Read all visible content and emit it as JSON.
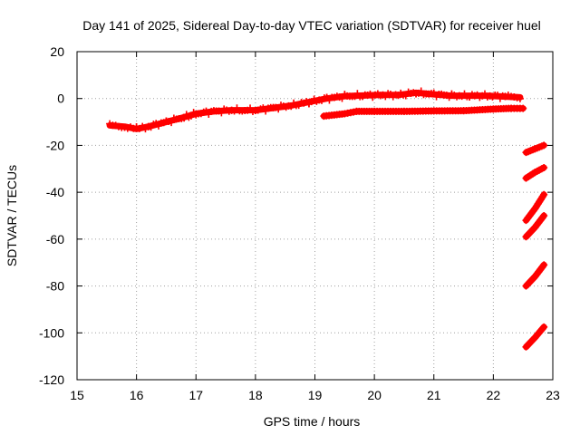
{
  "chart_data": {
    "type": "scatter",
    "title": "Day 141 of 2025, Sidereal Day-to-day VTEC variation (SDTVAR) for receiver huel",
    "xlabel": "GPS time / hours",
    "ylabel": "SDTVAR / TECUs",
    "xlim": [
      15,
      23
    ],
    "ylim": [
      -120,
      20
    ],
    "xticks": [
      "15",
      "16",
      "17",
      "18",
      "19",
      "20",
      "21",
      "22",
      "23"
    ],
    "yticks": [
      "20",
      "0",
      "-20",
      "-40",
      "-60",
      "-80",
      "-100",
      "-120"
    ],
    "grid": true,
    "color": "#ff0000",
    "series": [
      {
        "name": "main",
        "x": [
          15.55,
          15.8,
          16.0,
          16.2,
          16.5,
          16.8,
          17.0,
          17.3,
          17.6,
          18.0,
          18.3,
          18.6,
          18.9,
          19.2,
          19.5,
          19.8,
          20.1,
          20.4,
          20.7,
          21.0,
          21.3,
          21.6,
          21.9,
          22.2,
          22.45
        ],
        "y": [
          -11.5,
          -12,
          -13,
          -12,
          -10,
          -8,
          -6.5,
          -5.5,
          -5,
          -5,
          -4,
          -3,
          -1.5,
          0,
          1,
          1.3,
          1.5,
          1.5,
          2.5,
          1.8,
          1.2,
          1.2,
          1.2,
          0.8,
          0.5
        ]
      },
      {
        "name": "lower-band",
        "x": [
          19.15,
          19.5,
          19.7,
          20.0,
          20.5,
          21.0,
          21.5,
          22.0,
          22.3,
          22.5
        ],
        "y": [
          -7.5,
          -6.5,
          -5.5,
          -5.5,
          -5.5,
          -5.3,
          -5.2,
          -4.5,
          -4.2,
          -4.2
        ]
      },
      {
        "name": "seg1",
        "x": [
          22.55,
          22.7,
          22.85
        ],
        "y": [
          -23,
          -21.5,
          -20
        ]
      },
      {
        "name": "seg2",
        "x": [
          22.55,
          22.7,
          22.85
        ],
        "y": [
          -34,
          -31.5,
          -29.5
        ]
      },
      {
        "name": "seg3",
        "x": [
          22.55,
          22.7,
          22.85
        ],
        "y": [
          -52,
          -47,
          -41
        ]
      },
      {
        "name": "seg4",
        "x": [
          22.55,
          22.7,
          22.85
        ],
        "y": [
          -59,
          -55,
          -50
        ]
      },
      {
        "name": "seg5",
        "x": [
          22.55,
          22.7,
          22.85
        ],
        "y": [
          -80,
          -76,
          -71
        ]
      },
      {
        "name": "seg6",
        "x": [
          22.55,
          22.7,
          22.85
        ],
        "y": [
          -106,
          -102,
          -97.5
        ]
      }
    ]
  }
}
